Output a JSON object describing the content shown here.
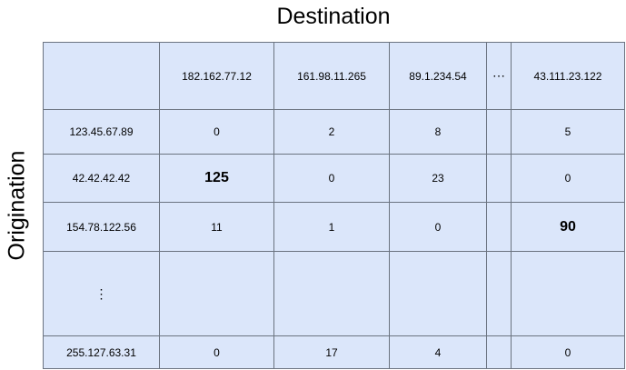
{
  "title": "Destination",
  "ylabel": "Origination",
  "destinations": [
    "182.162.77.12",
    "161.98.11.265",
    "89.1.234.54",
    "⋯",
    "43.111.23.122"
  ],
  "rows": [
    {
      "origin": "123.45.67.89",
      "cells": [
        "0",
        "2",
        "8",
        "",
        "5"
      ]
    },
    {
      "origin": "42.42.42.42",
      "cells": [
        "125",
        "0",
        "23",
        "",
        "0"
      ]
    },
    {
      "origin": "154.78.122.56",
      "cells": [
        "11",
        "1",
        "0",
        "",
        "90"
      ]
    },
    {
      "origin": "⋮",
      "cells": [
        "",
        "",
        "",
        "",
        ""
      ]
    },
    {
      "origin": "255.127.63.31",
      "cells": [
        "0",
        "17",
        "4",
        "",
        "0"
      ]
    }
  ]
}
